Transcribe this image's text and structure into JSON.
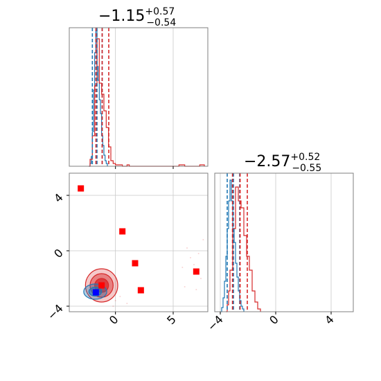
{
  "chart_data": [
    {
      "panel": "marginal-param-1",
      "type": "histogram",
      "title": {
        "median": "−1.15",
        "plus": "+0.57",
        "minus": "−0.54"
      },
      "xlim": [
        -4,
        8
      ],
      "x_ticks": [
        0,
        5
      ],
      "grid": true,
      "series": [
        {
          "color": "#1f77b4",
          "quantiles": [
            -2.0,
            -1.6,
            -1.15
          ],
          "hist": [
            [
              -2.3,
              0.0
            ],
            [
              -2.2,
              0.02
            ],
            [
              -2.1,
              0.07
            ],
            [
              -2.0,
              0.25
            ],
            [
              -1.9,
              0.55
            ],
            [
              -1.8,
              0.82
            ],
            [
              -1.7,
              0.98
            ],
            [
              -1.6,
              0.72
            ],
            [
              -1.5,
              0.62
            ],
            [
              -1.4,
              0.48
            ],
            [
              -1.3,
              0.38
            ],
            [
              -1.2,
              0.22
            ],
            [
              -1.1,
              0.15
            ],
            [
              -1.0,
              0.08
            ],
            [
              -0.9,
              0.04
            ],
            [
              -0.8,
              0.02
            ],
            [
              -0.7,
              0.0
            ]
          ]
        },
        {
          "color": "#d62728",
          "quantiles": [
            -1.69,
            -1.15,
            -0.58
          ],
          "hist": [
            [
              -2.3,
              0.0
            ],
            [
              -2.2,
              0.05
            ],
            [
              -2.0,
              0.22
            ],
            [
              -1.8,
              0.58
            ],
            [
              -1.6,
              0.92
            ],
            [
              -1.4,
              0.6
            ],
            [
              -1.2,
              0.52
            ],
            [
              -1.0,
              0.4
            ],
            [
              -0.8,
              0.28
            ],
            [
              -0.6,
              0.14
            ],
            [
              -0.4,
              0.04
            ],
            [
              -0.2,
              0.02
            ],
            [
              0.0,
              0.01
            ],
            [
              0.6,
              0.0
            ],
            [
              1.0,
              0.01
            ],
            [
              1.2,
              0.0
            ],
            [
              5.5,
              0.01
            ],
            [
              6.0,
              0.0
            ],
            [
              7.3,
              0.01
            ],
            [
              7.7,
              0.0
            ]
          ]
        }
      ]
    },
    {
      "panel": "joint-param-1-param-2",
      "type": "scatter",
      "xlim": [
        -4,
        8
      ],
      "ylim": [
        -4.4,
        5.6
      ],
      "x_ticks": [
        0,
        5
      ],
      "y_ticks": [
        -4,
        0,
        4
      ],
      "grid": true,
      "series": [
        {
          "color": "#ff0000",
          "points": [
            [
              -3.0,
              4.5
            ],
            [
              0.6,
              1.4
            ],
            [
              1.7,
              -0.9
            ],
            [
              7.0,
              -1.5
            ],
            [
              -1.2,
              -2.5
            ],
            [
              2.2,
              -2.85
            ]
          ]
        },
        {
          "color": "#0000ff",
          "points": [
            [
              -1.7,
              -3.0
            ]
          ]
        }
      ],
      "contours": [
        {
          "color": "#d62728",
          "center": [
            -1.2,
            -2.5
          ],
          "radii": [
            [
              1.4,
              1.2
            ],
            [
              1.0,
              0.85
            ],
            [
              0.6,
              0.5
            ]
          ]
        },
        {
          "color": "#1f77b4",
          "center": [
            -1.75,
            -2.95
          ],
          "radii": [
            [
              1.0,
              0.55
            ],
            [
              0.55,
              0.32
            ]
          ]
        }
      ]
    },
    {
      "panel": "marginal-param-2",
      "type": "histogram",
      "title": {
        "median": "−2.57",
        "plus": "+0.52",
        "minus": "−0.55"
      },
      "xlim": [
        -4.4,
        5.6
      ],
      "x_ticks": [
        -4,
        0,
        4
      ],
      "grid": true,
      "series": [
        {
          "color": "#1f77b4",
          "quantiles": [
            -3.5,
            -3.05,
            -2.6
          ],
          "hist": [
            [
              -4.0,
              0.0
            ],
            [
              -3.9,
              0.03
            ],
            [
              -3.8,
              0.1
            ],
            [
              -3.7,
              0.22
            ],
            [
              -3.6,
              0.4
            ],
            [
              -3.5,
              0.6
            ],
            [
              -3.4,
              0.8
            ],
            [
              -3.3,
              0.95
            ],
            [
              -3.2,
              0.8
            ],
            [
              -3.1,
              0.6
            ],
            [
              -3.0,
              0.5
            ],
            [
              -2.9,
              0.35
            ],
            [
              -2.8,
              0.25
            ],
            [
              -2.7,
              0.15
            ],
            [
              -2.6,
              0.08
            ],
            [
              -2.5,
              0.04
            ],
            [
              -2.4,
              0.02
            ],
            [
              -2.3,
              0.0
            ]
          ]
        },
        {
          "color": "#d62728",
          "quantiles": [
            -3.12,
            -2.57,
            -2.05
          ],
          "hist": [
            [
              -3.6,
              0.0
            ],
            [
              -3.5,
              0.05
            ],
            [
              -3.4,
              0.15
            ],
            [
              -3.3,
              0.3
            ],
            [
              -3.1,
              0.6
            ],
            [
              -2.9,
              0.9
            ],
            [
              -2.7,
              0.8
            ],
            [
              -2.5,
              0.75
            ],
            [
              -2.3,
              0.55
            ],
            [
              -2.1,
              0.4
            ],
            [
              -1.9,
              0.3
            ],
            [
              -1.7,
              0.15
            ],
            [
              -1.5,
              0.07
            ],
            [
              -1.3,
              0.02
            ],
            [
              -1.1,
              0.0
            ]
          ]
        }
      ]
    }
  ]
}
